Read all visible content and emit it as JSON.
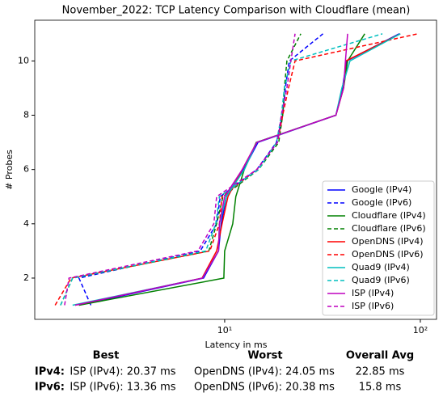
{
  "chart_data": {
    "type": "line",
    "title": "November_2022: TCP Latency Comparison with Cloudflare (mean)",
    "xlabel": "Latency in ms",
    "ylabel": "# Probes",
    "xscale": "log",
    "xlim": [
      1.07,
      121
    ],
    "ylim": [
      0.48,
      11.5
    ],
    "xticks": [
      {
        "value": 10,
        "label": "10¹"
      },
      {
        "value": 100,
        "label": "10²"
      }
    ],
    "yticks": [
      2,
      4,
      6,
      8,
      10
    ],
    "legend": "lower right",
    "y": [
      1,
      2,
      3,
      4,
      5,
      6,
      7,
      8,
      9,
      10,
      11
    ],
    "series": [
      {
        "name": "Google (IPv4)",
        "color": "#0000ff",
        "style": "solid",
        "x": [
          1.8,
          7.8,
          9.3,
          9.6,
          10.2,
          12.5,
          14.8,
          37,
          40,
          42,
          78
        ]
      },
      {
        "name": "Google (IPv6)",
        "color": "#0000ff",
        "style": "dashed",
        "x": [
          2.07,
          1.8,
          7.5,
          9.1,
          9.5,
          14.6,
          18.4,
          19.8,
          20.4,
          21.4,
          31.8
        ]
      },
      {
        "name": "Cloudflare (IPv4)",
        "color": "#008000",
        "style": "solid",
        "x": [
          1.8,
          9.9,
          10,
          11,
          11.4,
          12.6,
          14.5,
          37,
          40.5,
          42.5,
          52
        ]
      },
      {
        "name": "Cloudflare (IPv6)",
        "color": "#008000",
        "style": "dashed",
        "x": [
          1.45,
          1.67,
          8.3,
          9.1,
          9.8,
          14.9,
          18.9,
          19.8,
          20.2,
          20.8,
          24.5
        ]
      },
      {
        "name": "OpenDNS (IPv4)",
        "color": "#ff0000",
        "style": "solid",
        "x": [
          1.72,
          7.66,
          9.1,
          9.7,
          10.4,
          12.3,
          14.6,
          37,
          40.5,
          41.6,
          79
        ]
      },
      {
        "name": "OpenDNS (IPv6)",
        "color": "#ff0000",
        "style": "dashed",
        "x": [
          1.36,
          1.64,
          8.4,
          9.4,
          9.7,
          14.6,
          18.6,
          19.8,
          21.2,
          22.9,
          97
        ]
      },
      {
        "name": "Quad9 (IPv4)",
        "color": "#00bfbf",
        "style": "solid",
        "x": [
          1.67,
          7.7,
          9.3,
          9.4,
          10.2,
          12.6,
          14.6,
          37,
          39.7,
          43.7,
          79
        ]
      },
      {
        "name": "Quad9 (IPv6)",
        "color": "#00bfbf",
        "style": "dashed",
        "x": [
          1.45,
          1.67,
          8.0,
          9.0,
          9.4,
          14.9,
          18.4,
          19.5,
          20.2,
          21.8,
          64
        ]
      },
      {
        "name": "ISP (IPv4)",
        "color": "#bf00bf",
        "style": "solid",
        "x": [
          1.72,
          7.7,
          9.3,
          9.4,
          10,
          12.3,
          14.6,
          37,
          40.5,
          41.4,
          42.5
        ]
      },
      {
        "name": "ISP (IPv6)",
        "color": "#bf00bf",
        "style": "dashed",
        "x": [
          1.52,
          1.6,
          7.3,
          8.8,
          9.1,
          14.6,
          18.6,
          19.5,
          20.8,
          21.8,
          22.9
        ]
      }
    ]
  },
  "summary": {
    "headers": [
      "Best",
      "Worst",
      "Overall Avg"
    ],
    "rows": [
      {
        "label": "IPv4:",
        "cells": [
          "ISP (IPv4): 20.37 ms",
          "OpenDNS (IPv4): 24.05 ms",
          "22.85 ms"
        ]
      },
      {
        "label": "IPv6:",
        "cells": [
          "ISP (IPv6): 13.36 ms",
          "OpenDNS (IPv6): 20.38 ms",
          "15.8 ms"
        ]
      }
    ]
  }
}
